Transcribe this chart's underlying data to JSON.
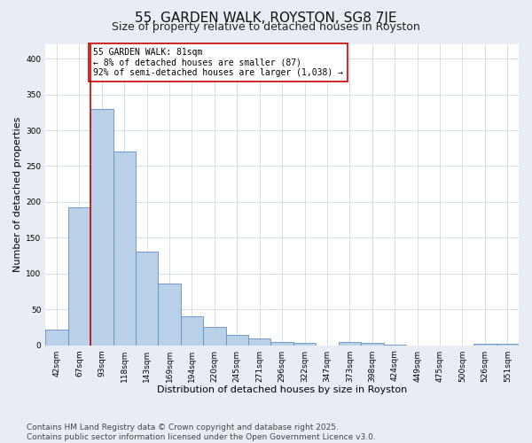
{
  "title": "55, GARDEN WALK, ROYSTON, SG8 7JE",
  "subtitle": "Size of property relative to detached houses in Royston",
  "xlabel": "Distribution of detached houses by size in Royston",
  "ylabel": "Number of detached properties",
  "categories": [
    "42sqm",
    "67sqm",
    "93sqm",
    "118sqm",
    "143sqm",
    "169sqm",
    "194sqm",
    "220sqm",
    "245sqm",
    "271sqm",
    "296sqm",
    "322sqm",
    "347sqm",
    "373sqm",
    "398sqm",
    "424sqm",
    "449sqm",
    "475sqm",
    "500sqm",
    "526sqm",
    "551sqm"
  ],
  "values": [
    22,
    193,
    330,
    270,
    130,
    86,
    40,
    26,
    14,
    9,
    5,
    3,
    0,
    5,
    3,
    1,
    0,
    0,
    0,
    2,
    2
  ],
  "bar_color": "#b8d0e8",
  "bar_edge_color": "#6090c0",
  "property_line_x": 1.5,
  "property_line_color": "#cc0000",
  "annotation_text": "55 GARDEN WALK: 81sqm\n← 8% of detached houses are smaller (87)\n92% of semi-detached houses are larger (1,038) →",
  "annotation_box_color": "#ffffff",
  "annotation_box_edge_color": "#cc0000",
  "ylim": [
    0,
    420
  ],
  "yticks": [
    0,
    50,
    100,
    150,
    200,
    250,
    300,
    350,
    400
  ],
  "footer": "Contains HM Land Registry data © Crown copyright and database right 2025.\nContains public sector information licensed under the Open Government Licence v3.0.",
  "background_color": "#e8edf5",
  "plot_bg_color": "#ffffff",
  "title_fontsize": 11,
  "subtitle_fontsize": 9,
  "footer_fontsize": 6.5,
  "annot_fontsize": 7,
  "xlabel_fontsize": 8,
  "ylabel_fontsize": 8,
  "tick_fontsize": 6.5
}
